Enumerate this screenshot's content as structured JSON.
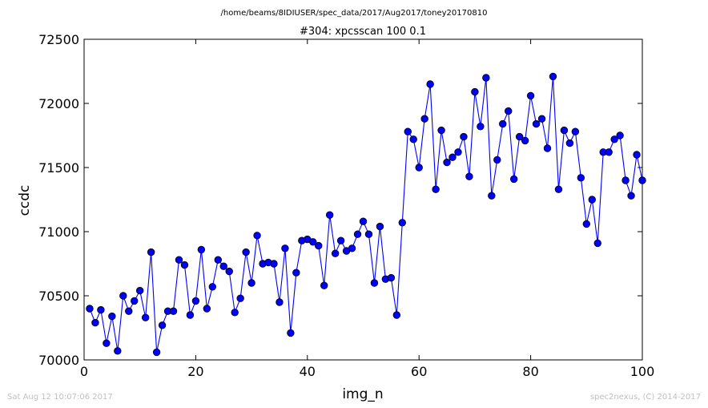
{
  "header": {
    "path": "/home/beams/8IDIUSER/spec_data/2017/Aug2017/toney20170810",
    "scan_title": "#304: xpcsscan 100 0.1"
  },
  "footer": {
    "timestamp": "Sat Aug 12 10:07:06 2017",
    "credit": "spec2nexus, (C) 2014-2017"
  },
  "chart_data": {
    "type": "line",
    "title": "#304: xpcsscan 100 0.1",
    "xlabel": "img_n",
    "ylabel": "ccdc",
    "xlim": [
      0,
      100
    ],
    "ylim": [
      70000,
      72500
    ],
    "xticks": [
      0,
      20,
      40,
      60,
      80,
      100
    ],
    "yticks": [
      70000,
      70500,
      71000,
      71500,
      72000,
      72500
    ],
    "grid": false,
    "marker": "circle",
    "color": "#0000ff",
    "series": [
      {
        "x": [
          1,
          2,
          3,
          4,
          5,
          6,
          7,
          8,
          9,
          10,
          11,
          12,
          13,
          14,
          15,
          16,
          17,
          18,
          19,
          20,
          21,
          22,
          23,
          24,
          25,
          26,
          27,
          28,
          29,
          30,
          31,
          32,
          33,
          34,
          35,
          36,
          37,
          38,
          39,
          40,
          41,
          42,
          43,
          44,
          45,
          46,
          47,
          48,
          49,
          50,
          51,
          52,
          53,
          54,
          55,
          56,
          57,
          58,
          59,
          60,
          61,
          62,
          63,
          64,
          65,
          66,
          67,
          68,
          69,
          70,
          71,
          72,
          73,
          74,
          75,
          76,
          77,
          78,
          79,
          80,
          81,
          82,
          83,
          84,
          85,
          86,
          87,
          88,
          89,
          90,
          91,
          92,
          93,
          94,
          95,
          96,
          97,
          98,
          99,
          100
        ],
        "values": [
          70400,
          70290,
          70390,
          70130,
          70340,
          70070,
          70500,
          70380,
          70460,
          70540,
          70330,
          70840,
          70060,
          70270,
          70380,
          70380,
          70780,
          70740,
          70350,
          70460,
          70860,
          70400,
          70570,
          70780,
          70730,
          70690,
          70370,
          70480,
          70840,
          70600,
          70970,
          70750,
          70760,
          70750,
          70450,
          70870,
          70210,
          70680,
          70930,
          70940,
          70920,
          70890,
          70580,
          71130,
          70830,
          70930,
          70850,
          70870,
          70980,
          71080,
          70980,
          70600,
          71040,
          70630,
          70640,
          70350,
          71070,
          71780,
          71720,
          71500,
          71880,
          72150,
          71330,
          71790,
          71540,
          71580,
          71620,
          71740,
          71430,
          72090,
          71820,
          72200,
          71280,
          71560,
          71840,
          71940,
          71410,
          71740,
          71710,
          72060,
          71840,
          71880,
          71650,
          72210,
          71330,
          71790,
          71690,
          71780,
          71420,
          71060,
          71250,
          70910,
          71620,
          71620,
          71720,
          71750,
          71400,
          71280,
          71600,
          71400
        ]
      }
    ]
  }
}
